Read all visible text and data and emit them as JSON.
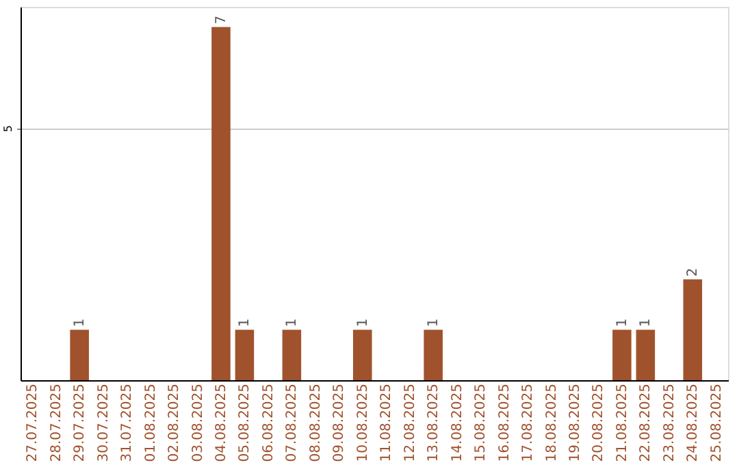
{
  "chart_data": {
    "type": "bar",
    "categories": [
      "27.07.2025",
      "28.07.2025",
      "29.07.2025",
      "30.07.2025",
      "31.07.2025",
      "01.08.2025",
      "02.08.2025",
      "03.08.2025",
      "04.08.2025",
      "05.08.2025",
      "06.08.2025",
      "07.08.2025",
      "08.08.2025",
      "09.08.2025",
      "10.08.2025",
      "11.08.2025",
      "12.08.2025",
      "13.08.2025",
      "14.08.2025",
      "15.08.2025",
      "16.08.2025",
      "17.08.2025",
      "18.08.2025",
      "19.08.2025",
      "20.08.2025",
      "21.08.2025",
      "22.08.2025",
      "23.08.2025",
      "24.08.2025",
      "25.08.2025"
    ],
    "values": [
      0,
      0,
      1,
      0,
      0,
      0,
      0,
      0,
      7,
      1,
      0,
      1,
      0,
      0,
      1,
      0,
      0,
      1,
      0,
      0,
      0,
      0,
      0,
      0,
      0,
      1,
      1,
      0,
      2,
      0
    ],
    "value_labels": [
      null,
      null,
      "1",
      null,
      null,
      null,
      null,
      null,
      "7",
      "1",
      null,
      "1",
      null,
      null,
      "1",
      null,
      null,
      "1",
      null,
      null,
      null,
      null,
      null,
      null,
      null,
      "1",
      "1",
      null,
      "2",
      null
    ],
    "color": "#a0522d",
    "ylim": [
      0,
      7.4
    ],
    "yticks": [
      5
    ],
    "grid": "y"
  }
}
